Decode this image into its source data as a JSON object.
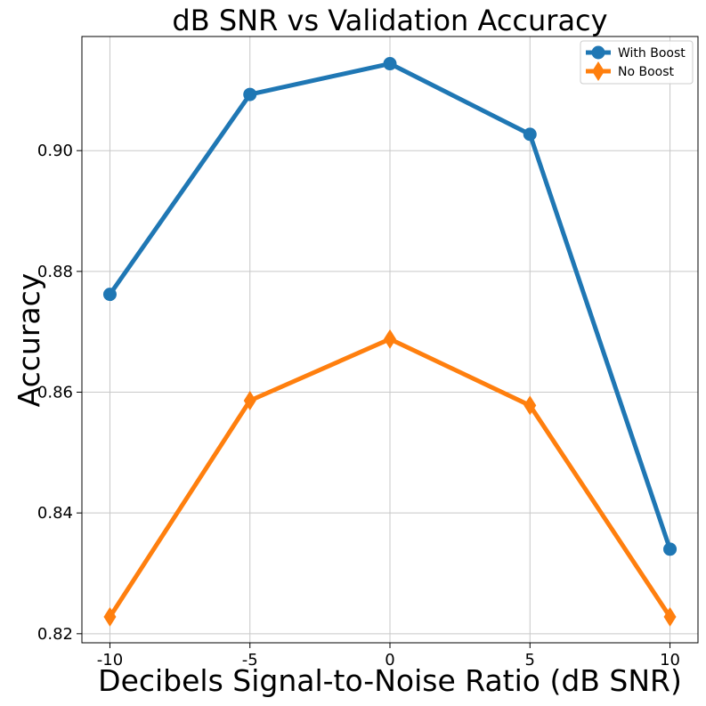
{
  "chart_data": {
    "type": "line",
    "title": "dB SNR vs Validation Accuracy",
    "xlabel": "Decibels Signal-to-Noise Ratio (dB SNR)",
    "ylabel": "Accuracy",
    "x": [
      -10,
      -5,
      0,
      5,
      10
    ],
    "x_tick_labels": [
      "-10",
      "-5",
      "0",
      "5",
      "10"
    ],
    "y_ticks": [
      0.82,
      0.84,
      0.86,
      0.88,
      0.9
    ],
    "y_tick_labels": [
      "0.82",
      "0.84",
      "0.86",
      "0.88",
      "0.90"
    ],
    "xlim": [
      -11,
      11
    ],
    "ylim": [
      0.8185,
      0.9189
    ],
    "grid": true,
    "legend_position": "top-right",
    "series": [
      {
        "name": "With Boost",
        "color": "#1f77b4",
        "marker": "circle",
        "values": [
          0.8762,
          0.9093,
          0.9144,
          0.9027,
          0.834
        ]
      },
      {
        "name": "No Boost",
        "color": "#ff7f0e",
        "marker": "diamond",
        "values": [
          0.8228,
          0.8586,
          0.8688,
          0.8578,
          0.8228
        ]
      }
    ]
  }
}
